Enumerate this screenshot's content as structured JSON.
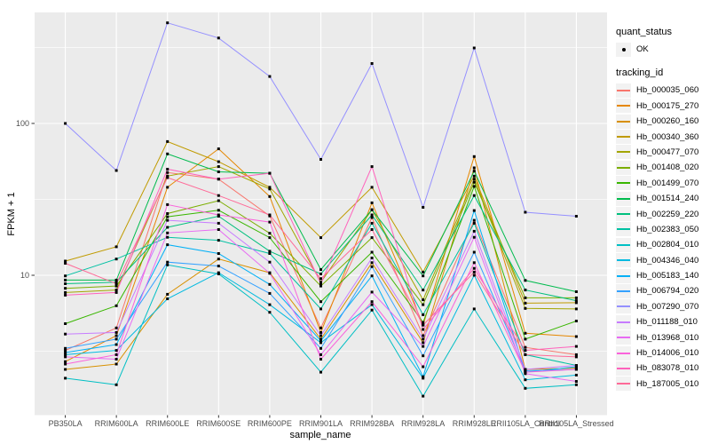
{
  "figure": {
    "y_axis_title": "FPKM + 1",
    "x_axis_title": "sample_name"
  },
  "legend": {
    "quant_status_title": "quant_status",
    "quant_status_items": [
      {
        "label": "OK",
        "marker": "black-point"
      }
    ],
    "tracking_id_title": "tracking_id"
  },
  "chart_data": {
    "type": "line",
    "title": "",
    "xlabel": "sample_name",
    "ylabel": "FPKM + 1",
    "y_scale": "log10",
    "ylim": [
      1.2,
      540
    ],
    "y_ticks": [
      100,
      10
    ],
    "y_minor_ticks": [
      316,
      31.6,
      3.16
    ],
    "grid": "white-on-gray",
    "legend_position": "right",
    "marker": "small-black-point",
    "categories": [
      "PB350LA",
      "RRIM600LA",
      "RRIM600LE",
      "RRIM600SE",
      "RRIM600PE",
      "RRIM901LA",
      "RRIM928BA",
      "RRIM928LA",
      "RRIM928LE",
      "RRII105LA_Control",
      "RRII105LA_Stressed"
    ],
    "series": [
      {
        "name": "Hb_000035_060",
        "color": "#F8766D",
        "values": [
          3.2,
          4.5,
          47.5,
          43,
          24.6,
          4.5,
          24,
          4.0,
          23,
          3.35,
          3.0
        ]
      },
      {
        "name": "Hb_000175_270",
        "color": "#E58700",
        "values": [
          2.7,
          4.0,
          38,
          68,
          33,
          4.2,
          30,
          4.7,
          60.5,
          4.15,
          3.95
        ]
      },
      {
        "name": "Hb_000260_160",
        "color": "#D89000",
        "values": [
          2.4,
          2.6,
          7.5,
          12.8,
          10.4,
          3.8,
          12.1,
          3.6,
          51,
          2.4,
          2.45
        ]
      },
      {
        "name": "Hb_000340_360",
        "color": "#C09B00",
        "values": [
          12.4,
          15.4,
          76,
          56,
          38,
          17.7,
          38,
          10.5,
          45,
          6.55,
          6.6
        ]
      },
      {
        "name": "Hb_000477_070",
        "color": "#A3A500",
        "values": [
          7.7,
          8.0,
          45,
          52,
          37,
          9.0,
          27,
          6.9,
          43,
          6.05,
          6.0
        ]
      },
      {
        "name": "Hb_001408_020",
        "color": "#7CAE00",
        "values": [
          8.2,
          8.5,
          25.5,
          31,
          18.9,
          8.5,
          17.7,
          6.4,
          41,
          7.1,
          7.1
        ]
      },
      {
        "name": "Hb_001499_070",
        "color": "#39B600",
        "values": [
          4.8,
          6.3,
          24.3,
          26.8,
          17.7,
          6.7,
          14.2,
          4.9,
          38.5,
          3.8,
          5.0
        ]
      },
      {
        "name": "Hb_001514_240",
        "color": "#00BB4E",
        "values": [
          9.3,
          9.3,
          63,
          48,
          47,
          10.9,
          27,
          9.9,
          48.5,
          9.25,
          7.8
        ]
      },
      {
        "name": "Hb_002259_220",
        "color": "#00BF7D",
        "values": [
          8.8,
          9.0,
          20.7,
          24.5,
          14.4,
          10.2,
          25,
          8.0,
          33.5,
          8.0,
          6.8
        ]
      },
      {
        "name": "Hb_002383_050",
        "color": "#00C1A3",
        "values": [
          9.9,
          12.8,
          17.8,
          17,
          13.9,
          6.0,
          22,
          5.5,
          22,
          3.0,
          2.55
        ]
      },
      {
        "name": "Hb_002804_010",
        "color": "#00BFC4",
        "values": [
          2.1,
          1.9,
          11.7,
          10.2,
          5.7,
          2.3,
          5.9,
          1.6,
          6.0,
          1.8,
          1.9
        ]
      },
      {
        "name": "Hb_004346_040",
        "color": "#00BAE0",
        "values": [
          3.0,
          3.2,
          7.0,
          10.4,
          6.4,
          3.6,
          6.4,
          2.1,
          10.0,
          2.05,
          2.2
        ]
      },
      {
        "name": "Hb_005183_140",
        "color": "#00B0F6",
        "values": [
          3.1,
          3.5,
          15.9,
          13.9,
          8.7,
          3.7,
          9.9,
          2.15,
          26.7,
          2.3,
          2.5
        ]
      },
      {
        "name": "Hb_006794_020",
        "color": "#35A2FF",
        "values": [
          3.3,
          3.8,
          12.2,
          11.5,
          7.6,
          3.3,
          11.4,
          2.95,
          14.2,
          2.35,
          2.4
        ]
      },
      {
        "name": "Hb_007290_070",
        "color": "#9590FF",
        "values": [
          100,
          49,
          460,
          365,
          204,
          58,
          248,
          28,
          314,
          26,
          24.5
        ]
      },
      {
        "name": "Hb_011188_010",
        "color": "#C77CFF",
        "values": [
          4.1,
          4.2,
          23,
          22,
          12.2,
          4.0,
          13,
          3.8,
          19.5,
          2.4,
          2.55
        ]
      },
      {
        "name": "Hb_013968_010",
        "color": "#E76BF3",
        "values": [
          2.9,
          2.8,
          19,
          20,
          10.3,
          3.0,
          7.75,
          3.4,
          17.8,
          2.25,
          2.0
        ]
      },
      {
        "name": "Hb_014006_010",
        "color": "#FA62DB",
        "values": [
          2.6,
          3.0,
          29.2,
          25,
          22.4,
          2.8,
          6.7,
          2.5,
          12.1,
          2.3,
          2.4
        ]
      },
      {
        "name": "Hb_083078_010",
        "color": "#FF62BC",
        "values": [
          7.4,
          7.7,
          50,
          43,
          47,
          8.8,
          52,
          4.4,
          11.1,
          3.2,
          3.4
        ]
      },
      {
        "name": "Hb_187005_010",
        "color": "#FF6A98",
        "values": [
          12.0,
          8.8,
          44,
          33.5,
          25,
          9.5,
          20,
          4.7,
          10.5,
          3.0,
          2.9
        ]
      }
    ],
    "colors": {
      "panel_bg": "#EBEBEB",
      "grid": "#FFFFFF",
      "point": "#000000",
      "tick_text": "#4D4D4D",
      "axis_title_text": "#000000",
      "legend_key_bg": "#F2F2F2",
      "tick_mark": "#333333"
    }
  }
}
